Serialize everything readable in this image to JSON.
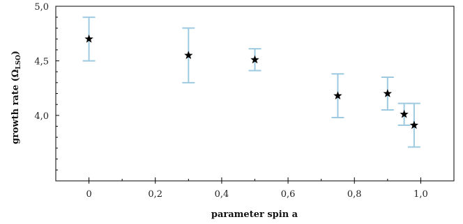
{
  "chart_data": {
    "type": "scatter",
    "xlabel": "parameter spin a",
    "ylabel_main": "growth rate (Ω",
    "ylabel_sub": "LSO",
    "ylabel_close": ")",
    "xlim": [
      -0.1,
      1.1
    ],
    "ylim": [
      3.4,
      5.0
    ],
    "x_ticks": [
      0,
      0.2,
      0.4,
      0.6,
      0.8,
      1.0
    ],
    "x_tick_labels": [
      "0",
      "0,2",
      "0,4",
      "0,6",
      "0,8",
      "1,0"
    ],
    "y_ticks": [
      4.0,
      4.5,
      5.0
    ],
    "y_tick_labels": [
      "4,0",
      "4,5",
      "5,0"
    ],
    "grid": false,
    "marker": "star",
    "marker_color": "#000000",
    "errorbar_color": "#9ecae1",
    "series": [
      {
        "points": [
          {
            "x": 0.0,
            "y": 4.7,
            "low": 4.5,
            "high": 4.9
          },
          {
            "x": 0.3,
            "y": 4.55,
            "low": 4.3,
            "high": 4.8
          },
          {
            "x": 0.5,
            "y": 4.51,
            "low": 4.41,
            "high": 4.61
          },
          {
            "x": 0.75,
            "y": 4.18,
            "low": 3.98,
            "high": 4.38
          },
          {
            "x": 0.9,
            "y": 4.2,
            "low": 4.05,
            "high": 4.35
          },
          {
            "x": 0.95,
            "y": 4.01,
            "low": 3.91,
            "high": 4.11
          },
          {
            "x": 0.98,
            "y": 3.91,
            "low": 3.71,
            "high": 4.11
          }
        ]
      }
    ]
  }
}
